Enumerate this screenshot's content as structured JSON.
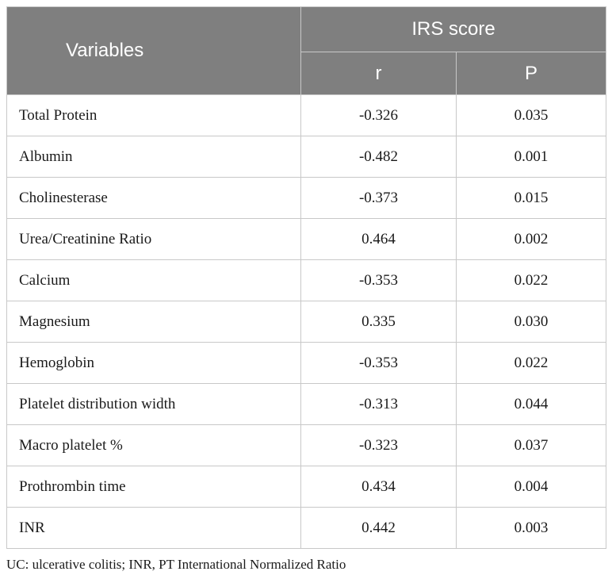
{
  "table": {
    "header": {
      "variables": "Variables",
      "group": "IRS score",
      "col_r": "r",
      "col_p": "P"
    },
    "rows": [
      {
        "variable": "Total Protein",
        "r": "-0.326",
        "p": "0.035"
      },
      {
        "variable": "Albumin",
        "r": "-0.482",
        "p": "0.001"
      },
      {
        "variable": "Cholinesterase",
        "r": "-0.373",
        "p": "0.015"
      },
      {
        "variable": "Urea/Creatinine Ratio",
        "r": "0.464",
        "p": "0.002"
      },
      {
        "variable": "Calcium",
        "r": "-0.353",
        "p": "0.022"
      },
      {
        "variable": "Magnesium",
        "r": "0.335",
        "p": "0.030"
      },
      {
        "variable": "Hemoglobin",
        "r": "-0.353",
        "p": "0.022"
      },
      {
        "variable": "Platelet distribution width",
        "r": "-0.313",
        "p": "0.044"
      },
      {
        "variable": "Macro platelet %",
        "r": "-0.323",
        "p": "0.037"
      },
      {
        "variable": "Prothrombin time",
        "r": "0.434",
        "p": "0.004"
      },
      {
        "variable": "INR",
        "r": "0.442",
        "p": "0.003"
      }
    ]
  },
  "footnote": "UC: ulcerative colitis; INR, PT International Normalized Ratio",
  "colors": {
    "header_bg": "#7f7f7f",
    "header_text": "#ffffff",
    "grid": "#c8c8c8"
  }
}
